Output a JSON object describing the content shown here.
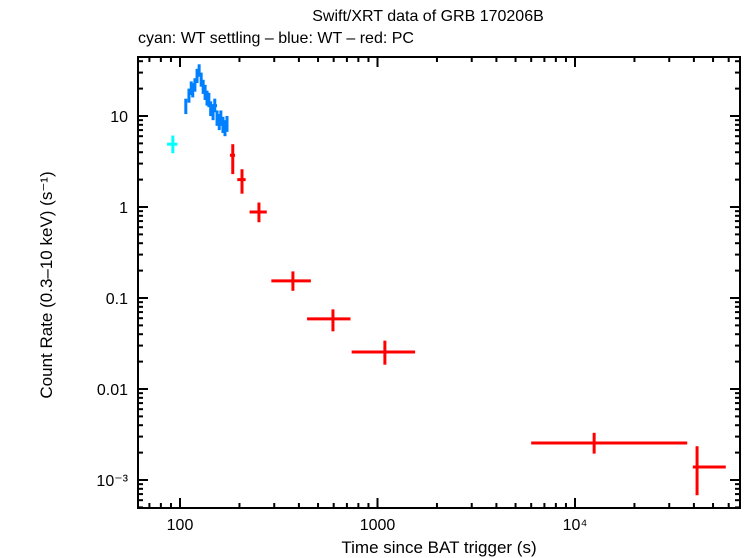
{
  "chart_data": {
    "type": "scatter",
    "title": "Swift/XRT data of GRB 170206B",
    "subtitle": "cyan: WT settling – blue: WT – red: PC",
    "xlabel": "Time since BAT trigger (s)",
    "ylabel": "Count Rate (0.3–10 keV) (s⁻¹)",
    "xscale": "log",
    "yscale": "log",
    "xlim": [
      60,
      70000
    ],
    "ylim": [
      0.00045,
      40
    ],
    "grid": false,
    "legend": "none",
    "x_ticks": [
      {
        "value": 100,
        "label": "100"
      },
      {
        "value": 1000,
        "label": "1000"
      },
      {
        "value": 10000,
        "label": "10⁴"
      }
    ],
    "y_ticks": [
      {
        "value": 10,
        "label": "10"
      },
      {
        "value": 1,
        "label": "1"
      },
      {
        "value": 0.1,
        "label": "0.1"
      },
      {
        "value": 0.01,
        "label": "0.01"
      },
      {
        "value": 0.001,
        "label": "10⁻³"
      }
    ],
    "series": [
      {
        "name": "WT settling",
        "color": "#00ffff",
        "points": [
          {
            "x": 92,
            "xlo": 86,
            "xhi": 97,
            "y": 4.9,
            "ylo": 3.9,
            "yhi": 6.1
          }
        ]
      },
      {
        "name": "WT",
        "color": "#0080ff",
        "points": [
          {
            "x": 107,
            "xlo": 106,
            "xhi": 108,
            "y": 12.8,
            "ylo": 10.5,
            "yhi": 15.5
          },
          {
            "x": 111,
            "xlo": 110,
            "xhi": 112,
            "y": 17,
            "ylo": 14,
            "yhi": 20
          },
          {
            "x": 114,
            "xlo": 113,
            "xhi": 115,
            "y": 20,
            "ylo": 17,
            "yhi": 24
          },
          {
            "x": 116,
            "xlo": 115,
            "xhi": 117,
            "y": 19,
            "ylo": 16,
            "yhi": 23
          },
          {
            "x": 119,
            "xlo": 118,
            "xhi": 120,
            "y": 22,
            "ylo": 18.5,
            "yhi": 26
          },
          {
            "x": 122,
            "xlo": 121,
            "xhi": 123,
            "y": 28,
            "ylo": 23,
            "yhi": 33
          },
          {
            "x": 125,
            "xlo": 124,
            "xhi": 126,
            "y": 32,
            "ylo": 27,
            "yhi": 37
          },
          {
            "x": 128,
            "xlo": 127,
            "xhi": 129,
            "y": 25,
            "ylo": 21,
            "yhi": 30
          },
          {
            "x": 131,
            "xlo": 130,
            "xhi": 132,
            "y": 21,
            "ylo": 17.5,
            "yhi": 25
          },
          {
            "x": 134,
            "xlo": 133,
            "xhi": 135,
            "y": 18,
            "ylo": 15,
            "yhi": 22
          },
          {
            "x": 137,
            "xlo": 136,
            "xhi": 138,
            "y": 16,
            "ylo": 13,
            "yhi": 19
          },
          {
            "x": 140,
            "xlo": 139,
            "xhi": 141,
            "y": 15,
            "ylo": 12.5,
            "yhi": 18
          },
          {
            "x": 143,
            "xlo": 142,
            "xhi": 144,
            "y": 12,
            "ylo": 10,
            "yhi": 14.5
          },
          {
            "x": 147,
            "xlo": 146,
            "xhi": 148,
            "y": 11,
            "ylo": 9,
            "yhi": 13.5
          },
          {
            "x": 150,
            "xlo": 146,
            "xhi": 154,
            "y": 13,
            "ylo": 11,
            "yhi": 15.5
          },
          {
            "x": 154,
            "xlo": 153,
            "xhi": 155,
            "y": 9.5,
            "ylo": 7.8,
            "yhi": 11.5
          },
          {
            "x": 158,
            "xlo": 157,
            "xhi": 159,
            "y": 8.6,
            "ylo": 7,
            "yhi": 10.5
          },
          {
            "x": 161,
            "xlo": 160,
            "xhi": 162,
            "y": 9.5,
            "ylo": 7.8,
            "yhi": 11.5
          },
          {
            "x": 165,
            "xlo": 164,
            "xhi": 166,
            "y": 8.0,
            "ylo": 6.5,
            "yhi": 9.8
          },
          {
            "x": 169,
            "xlo": 168,
            "xhi": 170,
            "y": 7.4,
            "ylo": 6.0,
            "yhi": 9.0
          },
          {
            "x": 173,
            "xlo": 172,
            "xhi": 174,
            "y": 8.2,
            "ylo": 6.7,
            "yhi": 10
          }
        ]
      },
      {
        "name": "PC",
        "color": "#ff0000",
        "points": [
          {
            "x": 185,
            "xlo": 179,
            "xhi": 190,
            "y": 3.7,
            "ylo": 2.3,
            "yhi": 4.9
          },
          {
            "x": 206,
            "xlo": 195,
            "xhi": 215,
            "y": 2.0,
            "ylo": 1.4,
            "yhi": 2.6
          },
          {
            "x": 251,
            "xlo": 225,
            "xhi": 275,
            "y": 0.88,
            "ylo": 0.68,
            "yhi": 1.12
          },
          {
            "x": 373,
            "xlo": 290,
            "xhi": 460,
            "y": 0.154,
            "ylo": 0.12,
            "yhi": 0.196
          },
          {
            "x": 595,
            "xlo": 440,
            "xhi": 730,
            "y": 0.059,
            "ylo": 0.043,
            "yhi": 0.075
          },
          {
            "x": 1090,
            "xlo": 740,
            "xhi": 1550,
            "y": 0.0255,
            "ylo": 0.0185,
            "yhi": 0.034
          },
          {
            "x": 12500,
            "xlo": 6000,
            "xhi": 37000,
            "y": 0.00255,
            "ylo": 0.00195,
            "yhi": 0.0033
          },
          {
            "x": 41500,
            "xlo": 39500,
            "xhi": 58000,
            "y": 0.00139,
            "ylo": 0.00068,
            "yhi": 0.00235
          }
        ]
      }
    ]
  }
}
